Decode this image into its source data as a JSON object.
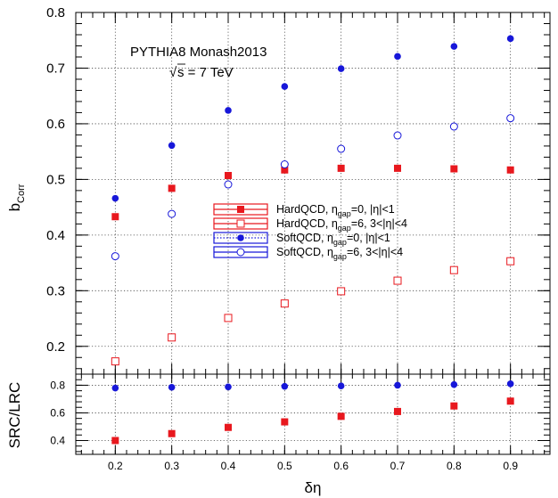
{
  "chart_data": [
    {
      "type": "scatter",
      "panel": "top",
      "annotation_line1": "PYTHIA8 Monash2013",
      "annotation_sqrt": "√",
      "annotation_line2": "s = 7 TeV",
      "ylabel_main": "b",
      "ylabel_sub": "Corr",
      "ylim": [
        0.15,
        0.8
      ],
      "yticks": [
        0.2,
        0.3,
        0.4,
        0.5,
        0.6,
        0.7,
        0.8
      ],
      "ytick_labels": [
        "0.2",
        "0.3",
        "0.4",
        "0.5",
        "0.6",
        "0.7",
        "0.8"
      ],
      "xlim": [
        0.13,
        0.97
      ],
      "grid": true,
      "legend_position": "center",
      "x": [
        0.2,
        0.3,
        0.4,
        0.5,
        0.6,
        0.7,
        0.8,
        0.9
      ],
      "series": [
        {
          "name": "HardQCD, η_gap=0, |η|<1",
          "label_pre": "HardQCD, η",
          "label_sub": "gap",
          "label_post": "=0, |η|<1",
          "color": "#e8181e",
          "marker": "square-filled",
          "values": [
            0.433,
            0.484,
            0.507,
            0.517,
            0.52,
            0.52,
            0.519,
            0.517
          ]
        },
        {
          "name": "HardQCD, η_gap=6, 3<|η|<4",
          "label_pre": "HardQCD, η",
          "label_sub": "gap",
          "label_post": "=6, 3<|η|<4",
          "color": "#e8181e",
          "marker": "square-open",
          "values": [
            0.173,
            0.216,
            0.251,
            0.277,
            0.299,
            0.318,
            0.337,
            0.353
          ]
        },
        {
          "name": "SoftQCD, η_gap=0, |η|<1",
          "label_pre": "SoftQCD, η",
          "label_sub": "gap",
          "label_post": "=0, |η|<1",
          "color": "#1717d9",
          "marker": "circle-filled",
          "values": [
            0.466,
            0.561,
            0.624,
            0.667,
            0.699,
            0.721,
            0.739,
            0.753
          ]
        },
        {
          "name": "SoftQCD, η_gap=6, 3<|η|<4",
          "label_pre": "SoftQCD, η",
          "label_sub": "gap",
          "label_post": "=6, 3<|η|<4",
          "color": "#1717d9",
          "marker": "circle-open",
          "values": [
            0.362,
            0.438,
            0.491,
            0.527,
            0.555,
            0.579,
            0.595,
            0.61
          ]
        }
      ]
    },
    {
      "type": "scatter",
      "panel": "bottom",
      "ylabel": "SRC/LRC",
      "xlabel": "δη",
      "ylim": [
        0.3,
        0.88
      ],
      "yticks": [
        0.4,
        0.6,
        0.8
      ],
      "ytick_labels": [
        "0.4",
        "0.6",
        "0.8"
      ],
      "xticks": [
        0.2,
        0.3,
        0.4,
        0.5,
        0.6,
        0.7,
        0.8,
        0.9
      ],
      "xtick_labels": [
        "0.2",
        "0.3",
        "0.4",
        "0.5",
        "0.6",
        "0.7",
        "0.8",
        "0.9"
      ],
      "grid": true,
      "x": [
        0.2,
        0.3,
        0.4,
        0.5,
        0.6,
        0.7,
        0.8,
        0.9
      ],
      "series": [
        {
          "color": "#e8181e",
          "marker": "square-filled",
          "values": [
            0.4,
            0.45,
            0.495,
            0.535,
            0.575,
            0.61,
            0.65,
            0.685
          ]
        },
        {
          "color": "#1717d9",
          "marker": "circle-filled",
          "values": [
            0.78,
            0.785,
            0.788,
            0.792,
            0.795,
            0.8,
            0.805,
            0.81
          ]
        }
      ]
    }
  ]
}
